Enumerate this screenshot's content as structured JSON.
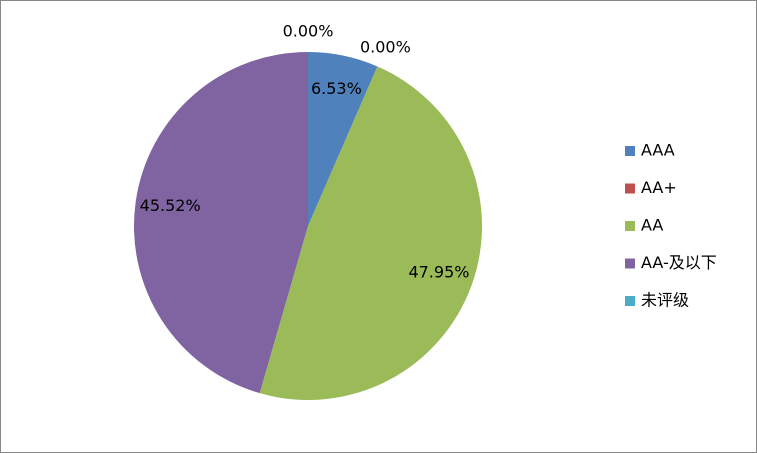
{
  "chart_data": {
    "type": "pie",
    "categories": [
      "AAA",
      "AA+",
      "AA",
      "AA-及以下",
      "未评级"
    ],
    "values": [
      6.53,
      0,
      47.95,
      45.52,
      0
    ],
    "value_labels": [
      "6.53%",
      "0.00%",
      "47.95%",
      "45.52%",
      "0.00%"
    ],
    "colors": [
      "#4f81bd",
      "#c0504d",
      "#9bbb59",
      "#8064a2",
      "#4bacc6"
    ],
    "legend": "right"
  }
}
